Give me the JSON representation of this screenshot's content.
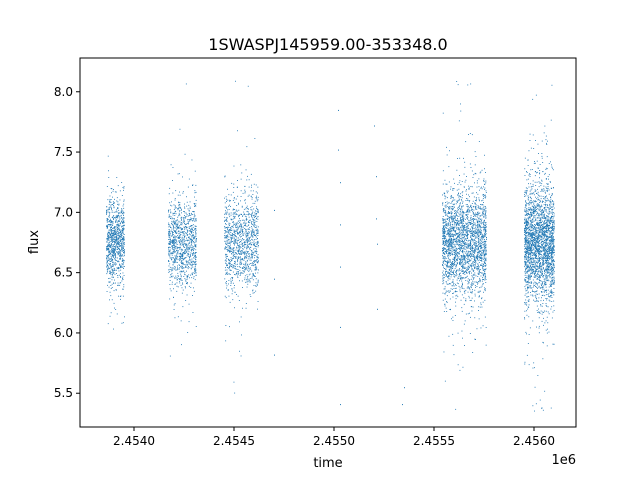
{
  "chart_data": {
    "type": "scatter",
    "title": "1SWASPJ145959.00-353348.0",
    "xlabel": "time",
    "ylabel": "flux",
    "x_offset_label": "1e6",
    "xlim": [
      2453730,
      2456210
    ],
    "ylim": [
      5.22,
      8.28
    ],
    "x_ticks": [
      {
        "value": 2454000,
        "label": "2.4540"
      },
      {
        "value": 2454500,
        "label": "2.4545"
      },
      {
        "value": 2455000,
        "label": "2.4550"
      },
      {
        "value": 2455500,
        "label": "2.4555"
      },
      {
        "value": 2456000,
        "label": "2.4560"
      }
    ],
    "y_ticks": [
      {
        "value": 5.5,
        "label": "5.5"
      },
      {
        "value": 6.0,
        "label": "6.0"
      },
      {
        "value": 6.5,
        "label": "6.5"
      },
      {
        "value": 7.0,
        "label": "7.0"
      },
      {
        "value": 7.5,
        "label": "7.5"
      },
      {
        "value": 8.0,
        "label": "8.0"
      }
    ],
    "grid": false,
    "marker_color": "#1f77b4",
    "series": [
      {
        "clusters": [
          {
            "x_range": [
              2453860,
              2453950
            ],
            "center": 6.76,
            "spread": 0.17,
            "count": 900
          },
          {
            "x_range": [
              2454170,
              2454310
            ],
            "center": 6.75,
            "spread": 0.18,
            "count": 1000
          },
          {
            "x_range": [
              2454450,
              2454620
            ],
            "center": 6.76,
            "spread": 0.2,
            "count": 1100
          },
          {
            "x_range": [
              2455540,
              2455760
            ],
            "center": 6.75,
            "spread": 0.22,
            "count": 2400
          },
          {
            "x_range": [
              2455950,
              2456100
            ],
            "center": 6.74,
            "spread": 0.24,
            "count": 2400
          }
        ],
        "sparse_points": [
          {
            "x": 2454700,
            "y": 6.45
          },
          {
            "x": 2454700,
            "y": 7.02
          },
          {
            "x": 2454700,
            "y": 5.82
          },
          {
            "x": 2455020,
            "y": 7.85
          },
          {
            "x": 2455020,
            "y": 7.52
          },
          {
            "x": 2455030,
            "y": 7.25
          },
          {
            "x": 2455030,
            "y": 6.9
          },
          {
            "x": 2455030,
            "y": 6.55
          },
          {
            "x": 2455030,
            "y": 6.05
          },
          {
            "x": 2455030,
            "y": 5.41
          },
          {
            "x": 2455200,
            "y": 7.72
          },
          {
            "x": 2455210,
            "y": 7.3
          },
          {
            "x": 2455210,
            "y": 6.95
          },
          {
            "x": 2455215,
            "y": 6.74
          },
          {
            "x": 2455215,
            "y": 6.2
          },
          {
            "x": 2455350,
            "y": 5.55
          },
          {
            "x": 2455340,
            "y": 5.41
          }
        ]
      }
    ]
  }
}
